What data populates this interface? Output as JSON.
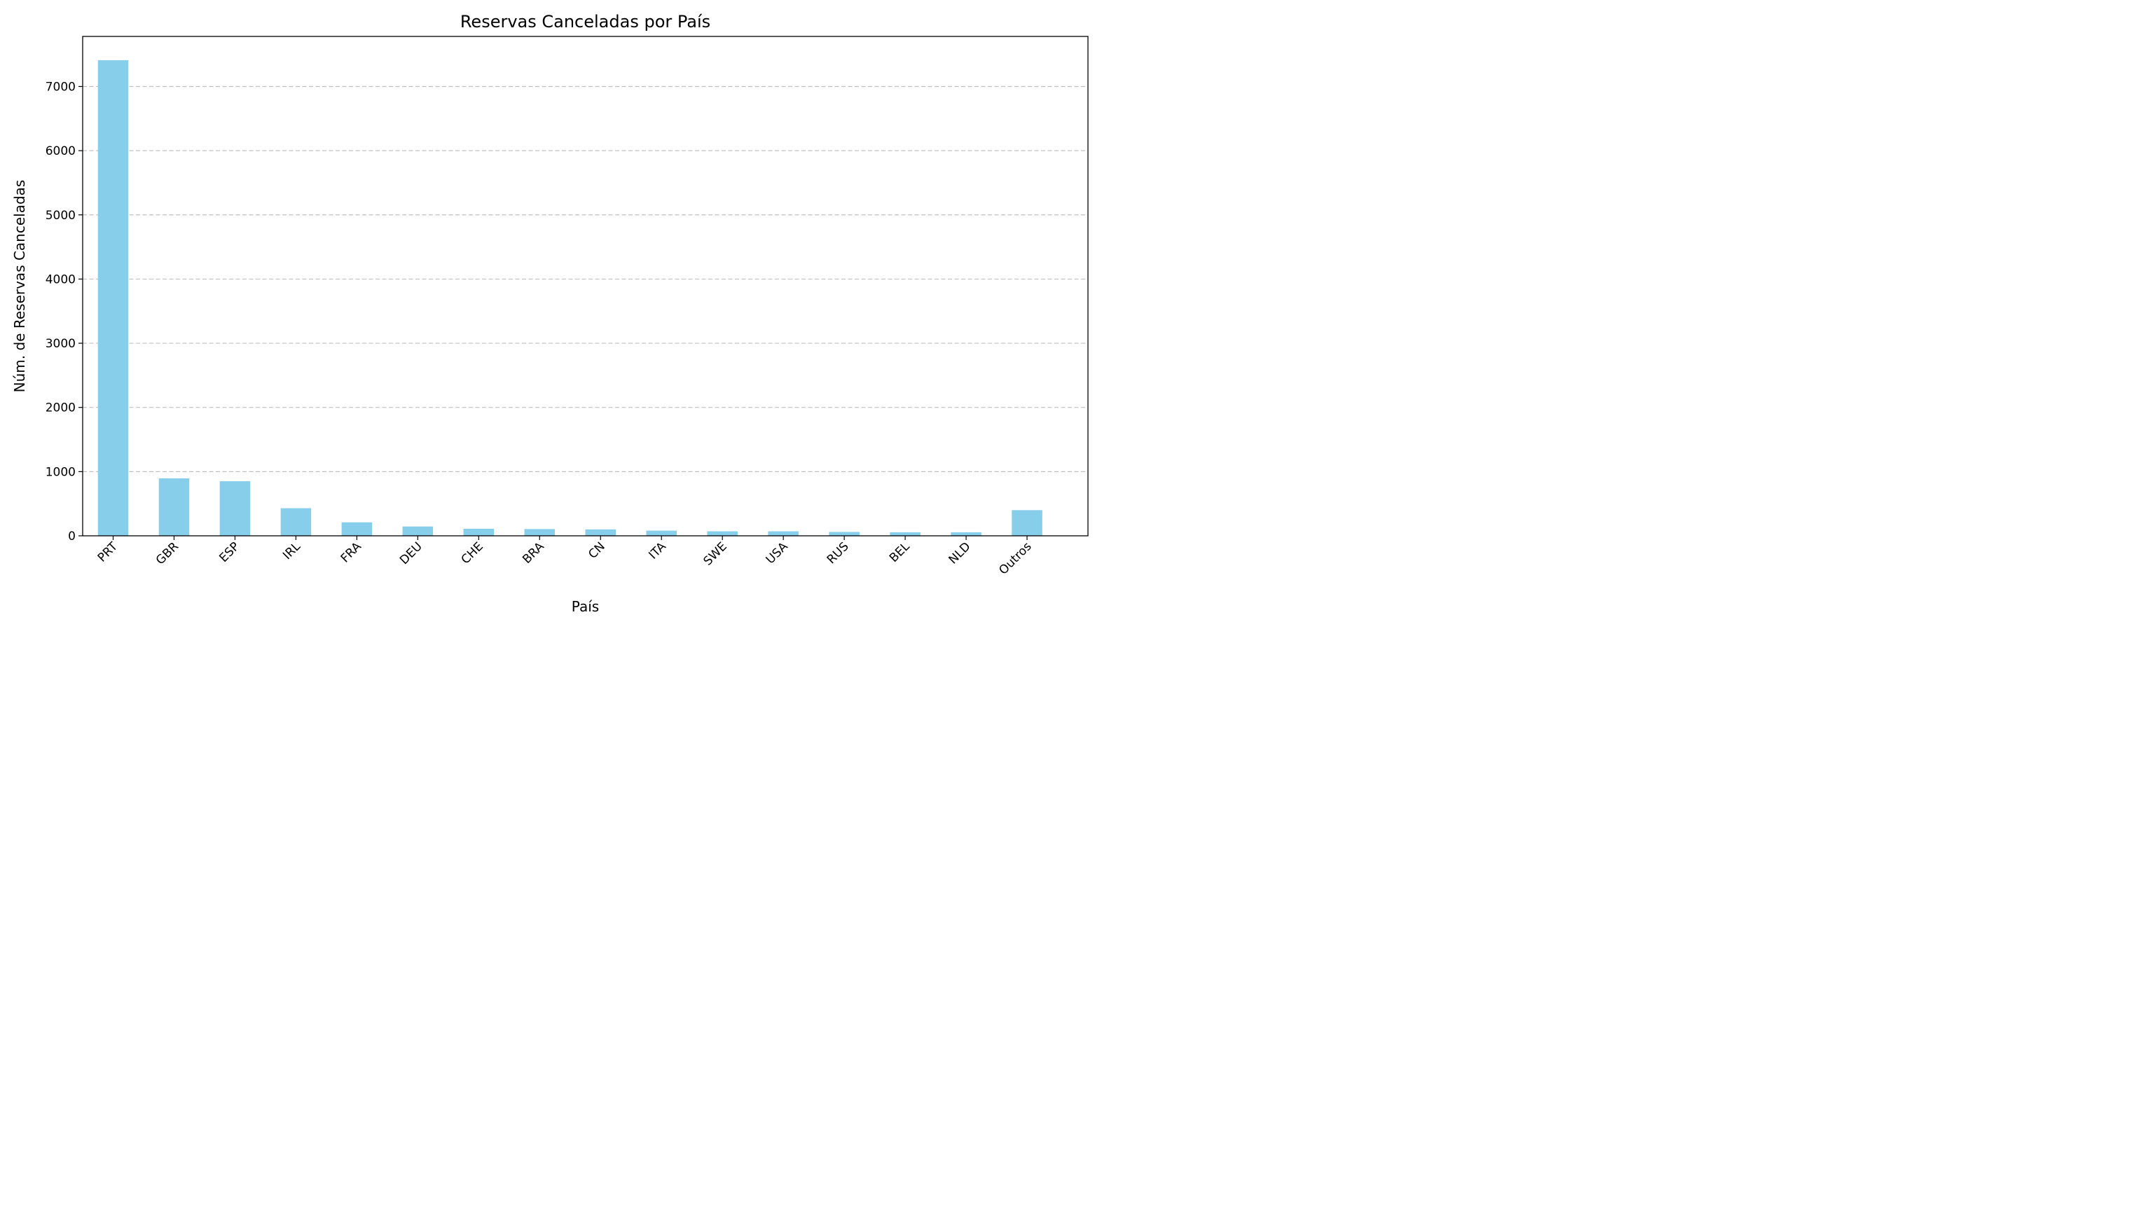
{
  "chart_data": {
    "type": "bar",
    "title": "Reservas Canceladas por País",
    "xlabel": "País",
    "ylabel": "Núm. de Reservas Canceladas",
    "categories": [
      "PRT",
      "GBR",
      "ESP",
      "IRL",
      "FRA",
      "DEU",
      "CHE",
      "BRA",
      "CN",
      "ITA",
      "SWE",
      "USA",
      "RUS",
      "BEL",
      "NLD",
      "Outros"
    ],
    "values": [
      7410,
      895,
      850,
      430,
      210,
      145,
      110,
      105,
      100,
      80,
      70,
      70,
      60,
      55,
      55,
      400
    ],
    "ylim": [
      0,
      7780
    ],
    "yticks": [
      0,
      1000,
      2000,
      3000,
      4000,
      5000,
      6000,
      7000
    ],
    "grid": "y-dashed",
    "legend": "none",
    "colors": {
      "bar": "#87CEEB",
      "grid": "#c0c0c0",
      "axis": "#000000"
    }
  }
}
